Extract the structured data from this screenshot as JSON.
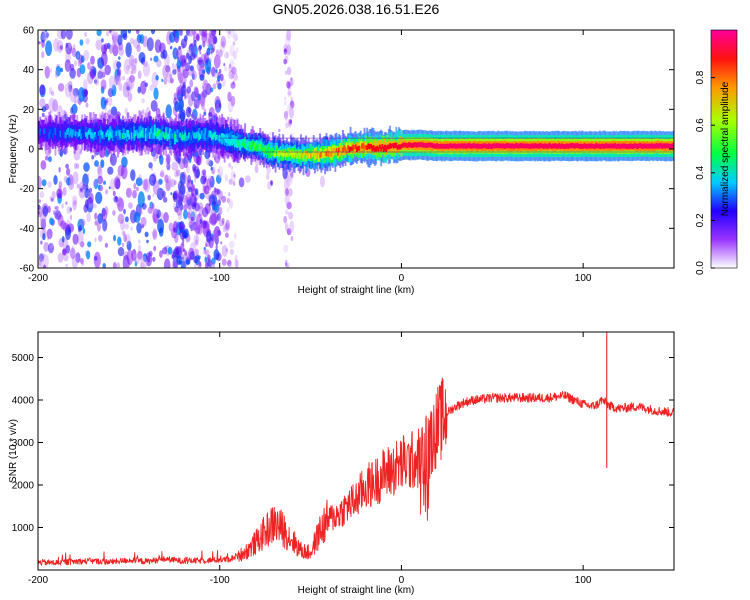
{
  "chart_data": [
    {
      "type": "heatmap",
      "title": "GN05.2026.038.16.51.E26",
      "xlabel": "Height of straight line (km)",
      "ylabel": "Frequency (Hz)",
      "xlim": [
        -200,
        150
      ],
      "ylim": [
        -60,
        60
      ],
      "x_ticks": [
        {
          "value": -200,
          "label": "-200"
        },
        {
          "value": -100,
          "label": "-100"
        },
        {
          "value": 0,
          "label": "0"
        },
        {
          "value": 100,
          "label": "100"
        }
      ],
      "y_ticks": [
        {
          "value": -60,
          "label": "-60"
        },
        {
          "value": -40,
          "label": "-40"
        },
        {
          "value": -20,
          "label": "-20"
        },
        {
          "value": 0,
          "label": "0"
        },
        {
          "value": 20,
          "label": "20"
        },
        {
          "value": 40,
          "label": "40"
        },
        {
          "value": 60,
          "label": "60"
        }
      ],
      "colorbar": {
        "label": "Normalized spectral amplitude",
        "range": [
          0,
          1
        ],
        "ticks": [
          {
            "value": 0.0,
            "label": "0.0"
          },
          {
            "value": 0.2,
            "label": "0.2"
          },
          {
            "value": 0.4,
            "label": "0.4"
          },
          {
            "value": 0.6,
            "label": "0.6"
          },
          {
            "value": 0.8,
            "label": "0.8"
          }
        ],
        "colors": [
          "#ffffff",
          "#7b00ff",
          "#0033ff",
          "#00e5ff",
          "#00ff33",
          "#ccff00",
          "#ff9900",
          "#ff0000",
          "#ff0099"
        ]
      },
      "ridge": {
        "x": [
          -200,
          -180,
          -160,
          -140,
          -130,
          -120,
          -110,
          -100,
          -90,
          -80,
          -70,
          -60,
          -50,
          -40,
          -30,
          -20,
          -10,
          0,
          10,
          20,
          40,
          60,
          80,
          100,
          120,
          150
        ],
        "freq": [
          8,
          8,
          7,
          8,
          7,
          6,
          7,
          6,
          3,
          1,
          -2,
          -3,
          -3,
          -2,
          0,
          1,
          1,
          2,
          2,
          1.5,
          1.5,
          1.5,
          1.5,
          1.5,
          1.5,
          1.5
        ],
        "amplitude": [
          0.25,
          0.3,
          0.35,
          0.4,
          0.42,
          0.38,
          0.35,
          0.4,
          0.45,
          0.5,
          0.6,
          0.65,
          0.7,
          0.78,
          0.85,
          0.88,
          0.9,
          0.92,
          0.95,
          0.95,
          0.96,
          0.96,
          0.95,
          0.95,
          0.96,
          0.96
        ]
      }
    },
    {
      "type": "line",
      "title": "",
      "xlabel": "Height of straight line (km)",
      "ylabel": "SNR (10 * v/v)",
      "xlim": [
        -200,
        150
      ],
      "ylim": [
        0,
        5600
      ],
      "color": "#ee2222",
      "x_ticks": [
        {
          "value": -200,
          "label": "-200"
        },
        {
          "value": -100,
          "label": "-100"
        },
        {
          "value": 0,
          "label": "0"
        },
        {
          "value": 100,
          "label": "100"
        }
      ],
      "y_ticks": [
        {
          "value": 1000,
          "label": "1000"
        },
        {
          "value": 2000,
          "label": "2000"
        },
        {
          "value": 3000,
          "label": "3000"
        },
        {
          "value": 4000,
          "label": "4000"
        },
        {
          "value": 5000,
          "label": "5000"
        }
      ],
      "series": [
        {
          "name": "SNR",
          "x": [
            -200,
            -190,
            -180,
            -170,
            -160,
            -150,
            -140,
            -130,
            -120,
            -110,
            -100,
            -95,
            -90,
            -85,
            -80,
            -75,
            -70,
            -65,
            -60,
            -55,
            -50,
            -45,
            -40,
            -35,
            -30,
            -25,
            -20,
            -15,
            -10,
            -5,
            0,
            5,
            10,
            15,
            20,
            25,
            30,
            35,
            40,
            45,
            50,
            60,
            70,
            80,
            90,
            95,
            100,
            105,
            108,
            110,
            112,
            115,
            120,
            130,
            140,
            150
          ],
          "values": [
            180,
            170,
            200,
            210,
            190,
            230,
            200,
            260,
            210,
            220,
            240,
            250,
            330,
            450,
            650,
            900,
            1100,
            950,
            700,
            450,
            400,
            900,
            1200,
            1300,
            1500,
            1650,
            1950,
            2050,
            2250,
            2350,
            2500,
            2550,
            2650,
            2950,
            3400,
            3700,
            3850,
            3950,
            4000,
            4020,
            4050,
            4050,
            4050,
            4050,
            4100,
            4000,
            3900,
            3850,
            3900,
            4000,
            3950,
            3850,
            3800,
            3850,
            3750,
            3700
          ]
        }
      ],
      "spikes": [
        {
          "x": 113,
          "value": 5600
        },
        {
          "x": 113,
          "value": 2400
        }
      ]
    }
  ]
}
